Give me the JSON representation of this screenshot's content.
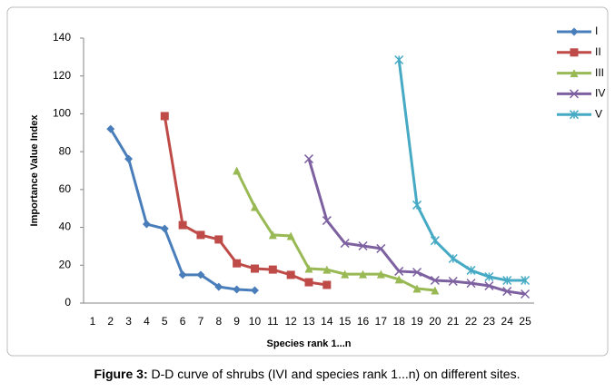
{
  "chart_data": {
    "type": "line",
    "y_label": "Importance Value Index",
    "x_label": "Species rank 1...n",
    "categories": [
      "1",
      "2",
      "3",
      "4",
      "5",
      "6",
      "7",
      "8",
      "9",
      "10",
      "11",
      "12",
      "13",
      "14",
      "15",
      "16",
      "17",
      "18",
      "19",
      "20",
      "21",
      "22",
      "23",
      "24",
      "25"
    ],
    "ylim": [
      0,
      140
    ],
    "yticks": [
      0,
      20,
      40,
      60,
      80,
      100,
      120,
      140
    ],
    "legend": "right",
    "series": [
      {
        "name": "I",
        "color": "#4a7ebb",
        "marker": "diamond",
        "values": [
          null,
          92,
          76.2,
          41.7,
          39.3,
          14.9,
          14.9,
          8.6,
          7.2,
          6.7,
          null,
          null,
          null,
          null,
          null,
          null,
          null,
          null,
          null,
          null,
          null,
          null,
          null,
          null,
          null
        ]
      },
      {
        "name": "II",
        "color": "#be4b48",
        "marker": "square",
        "values": [
          null,
          null,
          null,
          null,
          98.8,
          41.2,
          36,
          33.6,
          21,
          18.2,
          17.7,
          14.9,
          11,
          9.6,
          null,
          null,
          null,
          null,
          null,
          null,
          null,
          null,
          null,
          null,
          null
        ]
      },
      {
        "name": "III",
        "color": "#98b954",
        "marker": "triangle",
        "values": [
          null,
          null,
          null,
          null,
          null,
          null,
          null,
          null,
          70,
          50.8,
          36,
          35.5,
          18.2,
          17.7,
          15.3,
          15.3,
          15.3,
          12.5,
          7.7,
          6.7,
          null,
          null,
          null,
          null,
          null
        ]
      },
      {
        "name": "IV",
        "color": "#7d60a0",
        "marker": "x",
        "values": [
          null,
          null,
          null,
          null,
          null,
          null,
          null,
          null,
          null,
          null,
          null,
          null,
          76.2,
          43.6,
          31.6,
          30.2,
          28.8,
          16.8,
          16.3,
          12,
          11.5,
          10.5,
          9.1,
          6.2,
          4.8
        ]
      },
      {
        "name": "V",
        "color": "#46aac5",
        "marker": "star",
        "values": [
          null,
          null,
          null,
          null,
          null,
          null,
          null,
          null,
          null,
          null,
          null,
          null,
          null,
          null,
          null,
          null,
          null,
          128.5,
          51.8,
          33,
          23.5,
          17.3,
          13.9,
          12,
          12
        ]
      }
    ]
  },
  "caption": {
    "label": "Figure 3:",
    "text": " D-D curve of shrubs (IVI and species rank 1...n) on different sites."
  }
}
